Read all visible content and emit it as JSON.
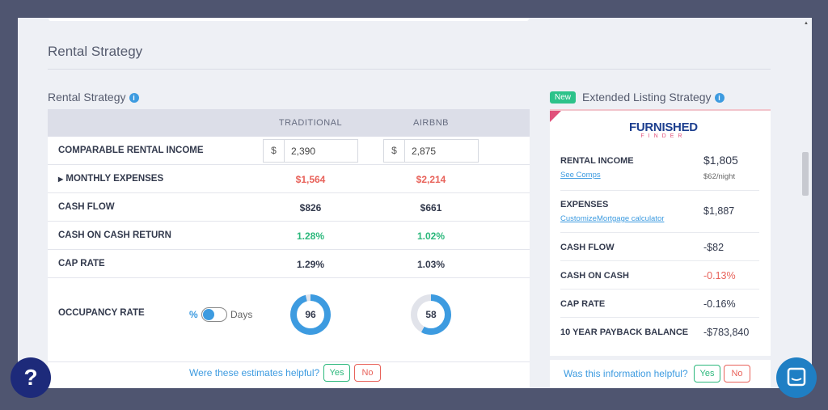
{
  "modal": {
    "title": "Rental Strategy"
  },
  "left": {
    "title": "Rental Strategy",
    "columns": [
      "TRADITIONAL",
      "AIRBNB"
    ],
    "rows": [
      {
        "label": "COMPARABLE RENTAL INCOME",
        "traditional": "2,390",
        "airbnb": "2,875",
        "currency": "$"
      },
      {
        "label": "MONTHLY EXPENSES",
        "traditional": "$1,564",
        "airbnb": "$2,214"
      },
      {
        "label": "CASH FLOW",
        "traditional": "$826",
        "airbnb": "$661"
      },
      {
        "label": "CASH ON CASH RETURN",
        "traditional": "1.28%",
        "airbnb": "1.02%"
      },
      {
        "label": "CAP RATE",
        "traditional": "1.29%",
        "airbnb": "1.03%"
      }
    ],
    "occupancy": {
      "label": "OCCUPANCY RATE",
      "unit_percent": "%",
      "unit_days": "Days",
      "traditional": "96",
      "airbnb": "58"
    },
    "feedback": {
      "question": "Were these estimates helpful?",
      "yes": "Yes",
      "no": "No"
    }
  },
  "right": {
    "badge": "New",
    "title": "Extended Listing Strategy",
    "logo_top": "FURNISHED",
    "logo_bottom": "FINDER",
    "rental_income": {
      "label": "RENTAL INCOME",
      "value": "$1,805",
      "link": "See Comps",
      "per_night": "$62/night"
    },
    "expenses": {
      "label": "EXPENSES",
      "value": "$1,887",
      "link1": "Customize",
      "link2": "Mortgage calculator"
    },
    "rows": [
      {
        "label": "CASH FLOW",
        "value": "-$82"
      },
      {
        "label": "CASH ON CASH",
        "value": "-0.13%"
      },
      {
        "label": "CAP RATE",
        "value": "-0.16%"
      },
      {
        "label": "10 YEAR PAYBACK BALANCE",
        "value": "-$783,840"
      }
    ],
    "feedback": {
      "question": "Was this information helpful?",
      "yes": "Yes",
      "no": "No"
    }
  },
  "colors": {
    "accent": "#3d9be0",
    "positive": "#2cb87c",
    "negative": "#e8625a",
    "badge": "#2cc28a"
  },
  "widgets": {
    "help": "?"
  }
}
